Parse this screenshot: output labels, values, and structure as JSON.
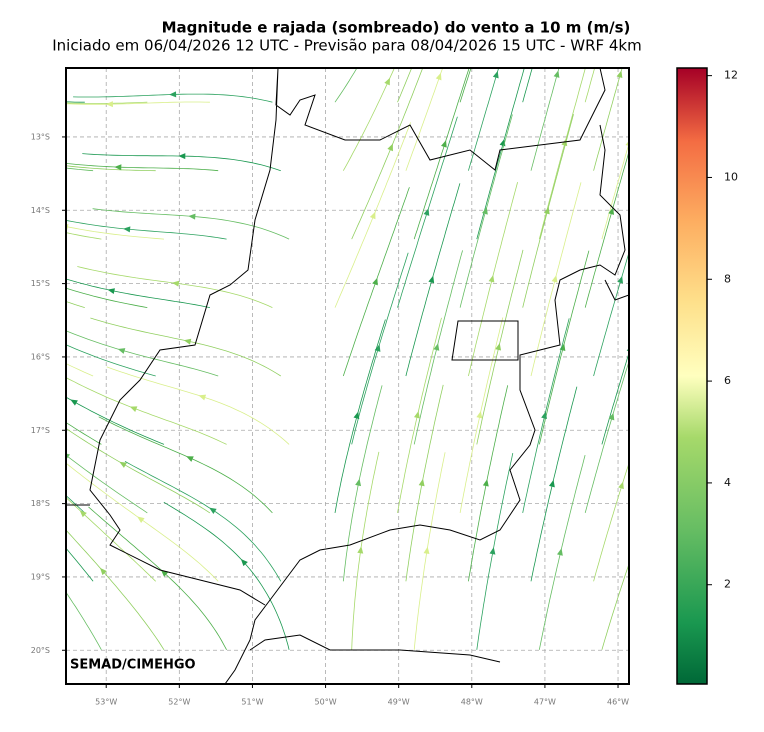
{
  "title": "Magnitude e rajada (sombreado) do vento a 10 m (m/s)",
  "subtitle": "Iniciado em 06/04/2026 12 UTC - Previsão para 08/04/2026 15 UTC - WRF 4km",
  "credit": "SEMAD/CIMEHGO",
  "map": {
    "xlim": [
      -53.55,
      -45.85
    ],
    "ylim": [
      -20.46,
      -12.06
    ],
    "xticks": [
      {
        "value": -53,
        "label": "53°W"
      },
      {
        "value": -52,
        "label": "52°W"
      },
      {
        "value": -51,
        "label": "51°W"
      },
      {
        "value": -50,
        "label": "50°W"
      },
      {
        "value": -49,
        "label": "49°W"
      },
      {
        "value": -48,
        "label": "48°W"
      },
      {
        "value": -47,
        "label": "47°W"
      },
      {
        "value": -46,
        "label": "46°W"
      }
    ],
    "yticks": [
      {
        "value": -13,
        "label": "13°S"
      },
      {
        "value": -14,
        "label": "14°S"
      },
      {
        "value": -15,
        "label": "15°S"
      },
      {
        "value": -16,
        "label": "16°S"
      },
      {
        "value": -17,
        "label": "17°S"
      },
      {
        "value": -18,
        "label": "18°S"
      },
      {
        "value": -19,
        "label": "19°S"
      },
      {
        "value": -20,
        "label": "20°S"
      }
    ],
    "grid": true
  },
  "colorbar": {
    "lim": [
      0.05,
      12.15
    ],
    "ticks": [
      2,
      4,
      6,
      8,
      10,
      12
    ]
  }
}
